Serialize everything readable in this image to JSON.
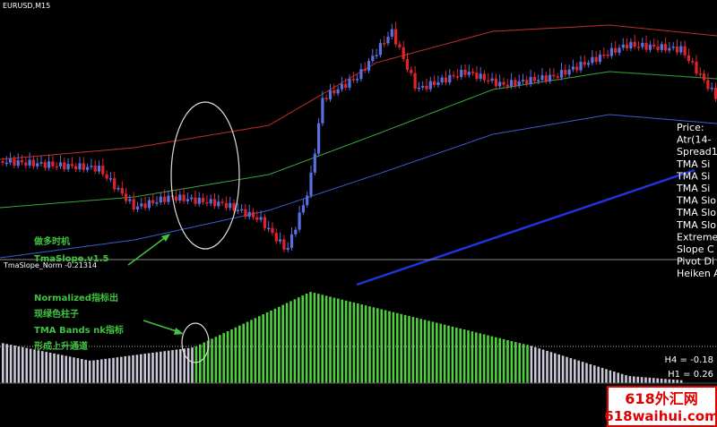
{
  "header": {
    "symbol": "EURUSD,M15"
  },
  "indicator": {
    "name": "TmaSlope_Norm -0.21314",
    "h4": "H4 = -0.18",
    "h1": "H1 = 0.26"
  },
  "annotation": {
    "lines": [
      "做多时机",
      "TmaSlope.v1.5",
      "Normalized指标出",
      "现绿色柱子",
      "TMA Bands nk指标",
      "形成上升通道"
    ]
  },
  "info_panel": {
    "lines": [
      "Price:",
      "Atr(14-",
      "Spread1",
      "TMA Si",
      "TMA Si",
      "TMA Si",
      "TMA Slo",
      "TMA Slo",
      "TMA Slo",
      "Extreme",
      "Slope C",
      "Pivot Di",
      "Heiken A"
    ]
  },
  "watermark": {
    "cn": "618外汇网",
    "url": "618waihui.com"
  }
}
